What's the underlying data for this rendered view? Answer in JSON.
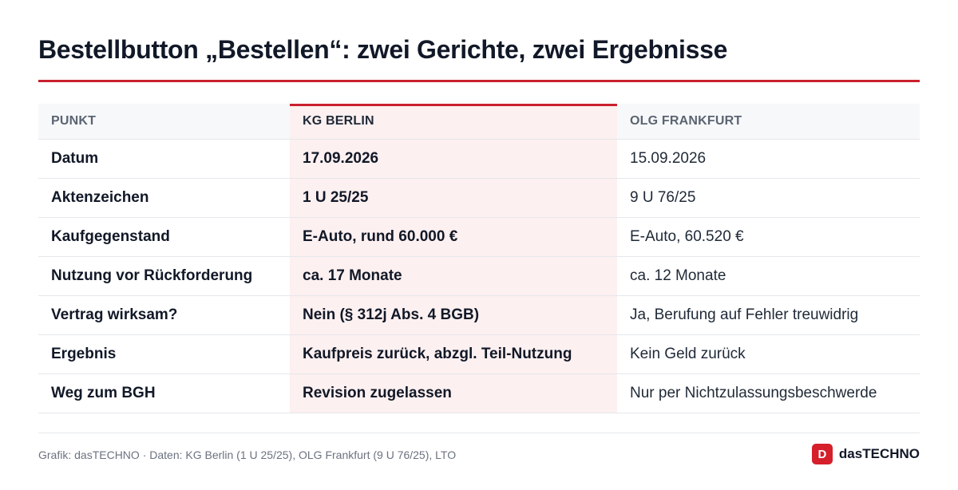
{
  "title": "Bestellbutton „Bestellen“: zwei Gerichte, zwei Ergebnisse",
  "colors": {
    "accent": "#c8202c",
    "highlight_bg": "#fdf0f0",
    "header_bg": "#f7f8fa"
  },
  "table": {
    "headers": [
      "PUNKT",
      "KG BERLIN",
      "OLG FRANKFURT"
    ],
    "rows": [
      {
        "label": "Datum",
        "kg": "17.09.2026",
        "olg": "15.09.2026"
      },
      {
        "label": "Aktenzeichen",
        "kg": "1 U 25/25",
        "olg": "9 U 76/25"
      },
      {
        "label": "Kaufgegenstand",
        "kg": "E-Auto, rund 60.000 €",
        "olg": "E-Auto, 60.520 €"
      },
      {
        "label": "Nutzung vor Rückforderung",
        "kg": "ca. 17 Monate",
        "olg": "ca. 12 Monate"
      },
      {
        "label": "Vertrag wirksam?",
        "kg": "Nein (§ 312j Abs. 4 BGB)",
        "olg": "Ja, Berufung auf Fehler treuwidrig"
      },
      {
        "label": "Ergebnis",
        "kg": "Kaufpreis zurück, abzgl. Teil-Nutzung",
        "olg": "Kein Geld zurück"
      },
      {
        "label": "Weg zum BGH",
        "kg": "Revision zugelassen",
        "olg": "Nur per Nichtzulassungsbeschwerde"
      }
    ]
  },
  "footer": {
    "source": "Grafik: dasTECHNO · Daten: KG Berlin (1 U 25/25), OLG Frankfurt (9 U 76/25), LTO",
    "brand_letter": "D",
    "brand_name": "dasTECHNO",
    "brand_icon": "das-techno-logo-icon"
  }
}
